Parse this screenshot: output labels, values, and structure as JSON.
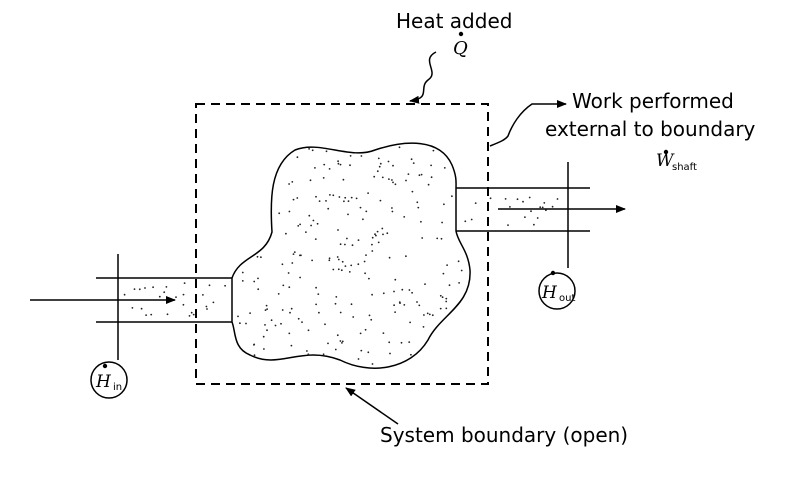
{
  "labels": {
    "heat_added": "Heat added",
    "heat_symbol": "Q",
    "work_line1": "Work performed",
    "work_line2": "external to boundary",
    "work_symbol": "W",
    "work_subscript": "shaft",
    "system_boundary": "System boundary (open)",
    "h_in_symbol": "H",
    "h_in_subscript": "in",
    "h_out_symbol": "H",
    "h_out_subscript": "out"
  }
}
